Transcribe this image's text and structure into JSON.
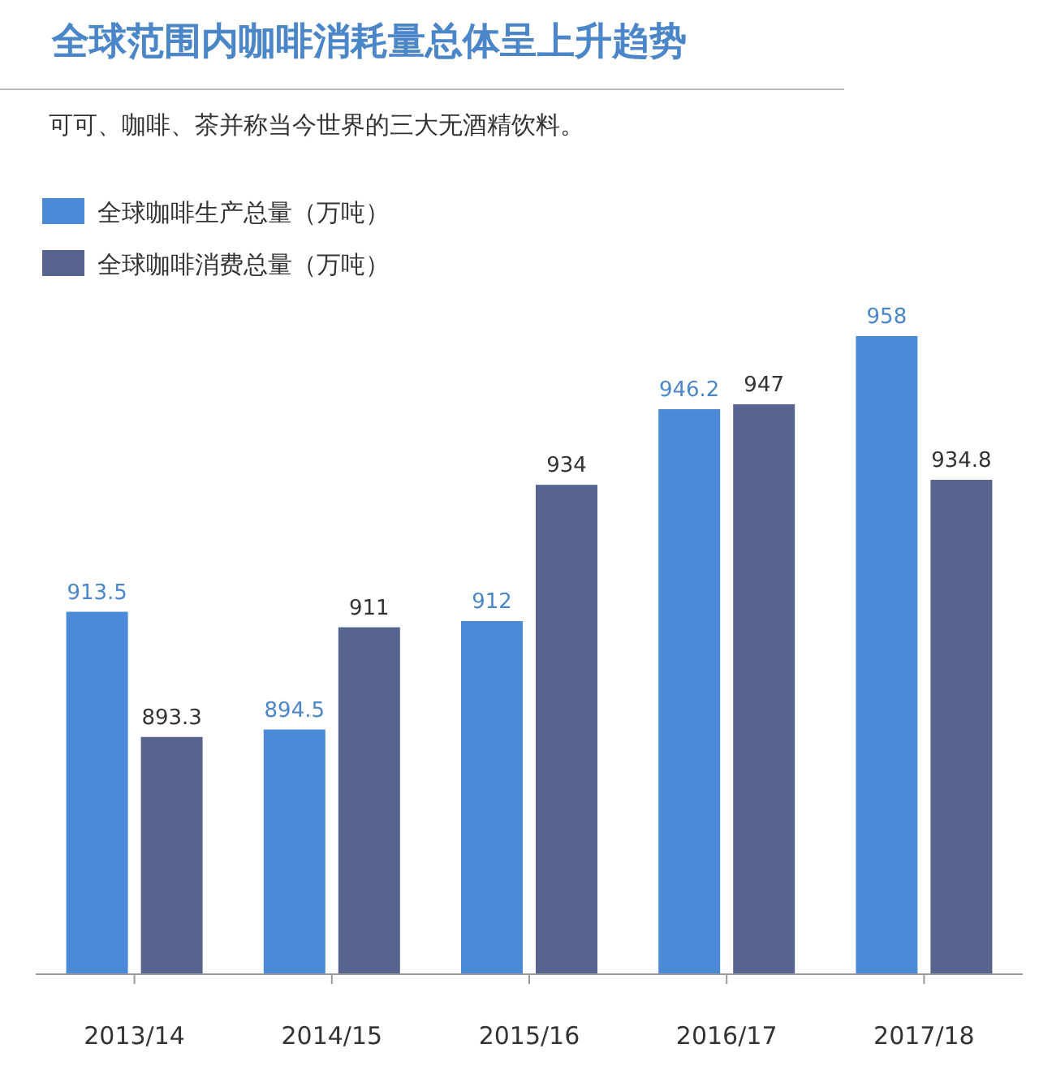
{
  "chart_data": {
    "type": "bar",
    "title": "全球范围内咖啡消耗量总体呈上升趋势",
    "subtitle": "可可、咖啡、茶并称当今世界的三大无酒精饮料。",
    "categories": [
      "2013/14",
      "2014/15",
      "2015/16",
      "2016/17",
      "2017/18"
    ],
    "series": [
      {
        "name": "全球咖啡生产总量（万吨）",
        "color": "#4a8ad6",
        "values": [
          913.5,
          894.5,
          912,
          946.2,
          958
        ]
      },
      {
        "name": "全球咖啡消费总量（万吨）",
        "color": "#56648f",
        "values": [
          893.3,
          911,
          934,
          947,
          934.8
        ]
      }
    ],
    "ylim": [
      855,
      958
    ],
    "legend": "top left",
    "data_labels": true
  }
}
